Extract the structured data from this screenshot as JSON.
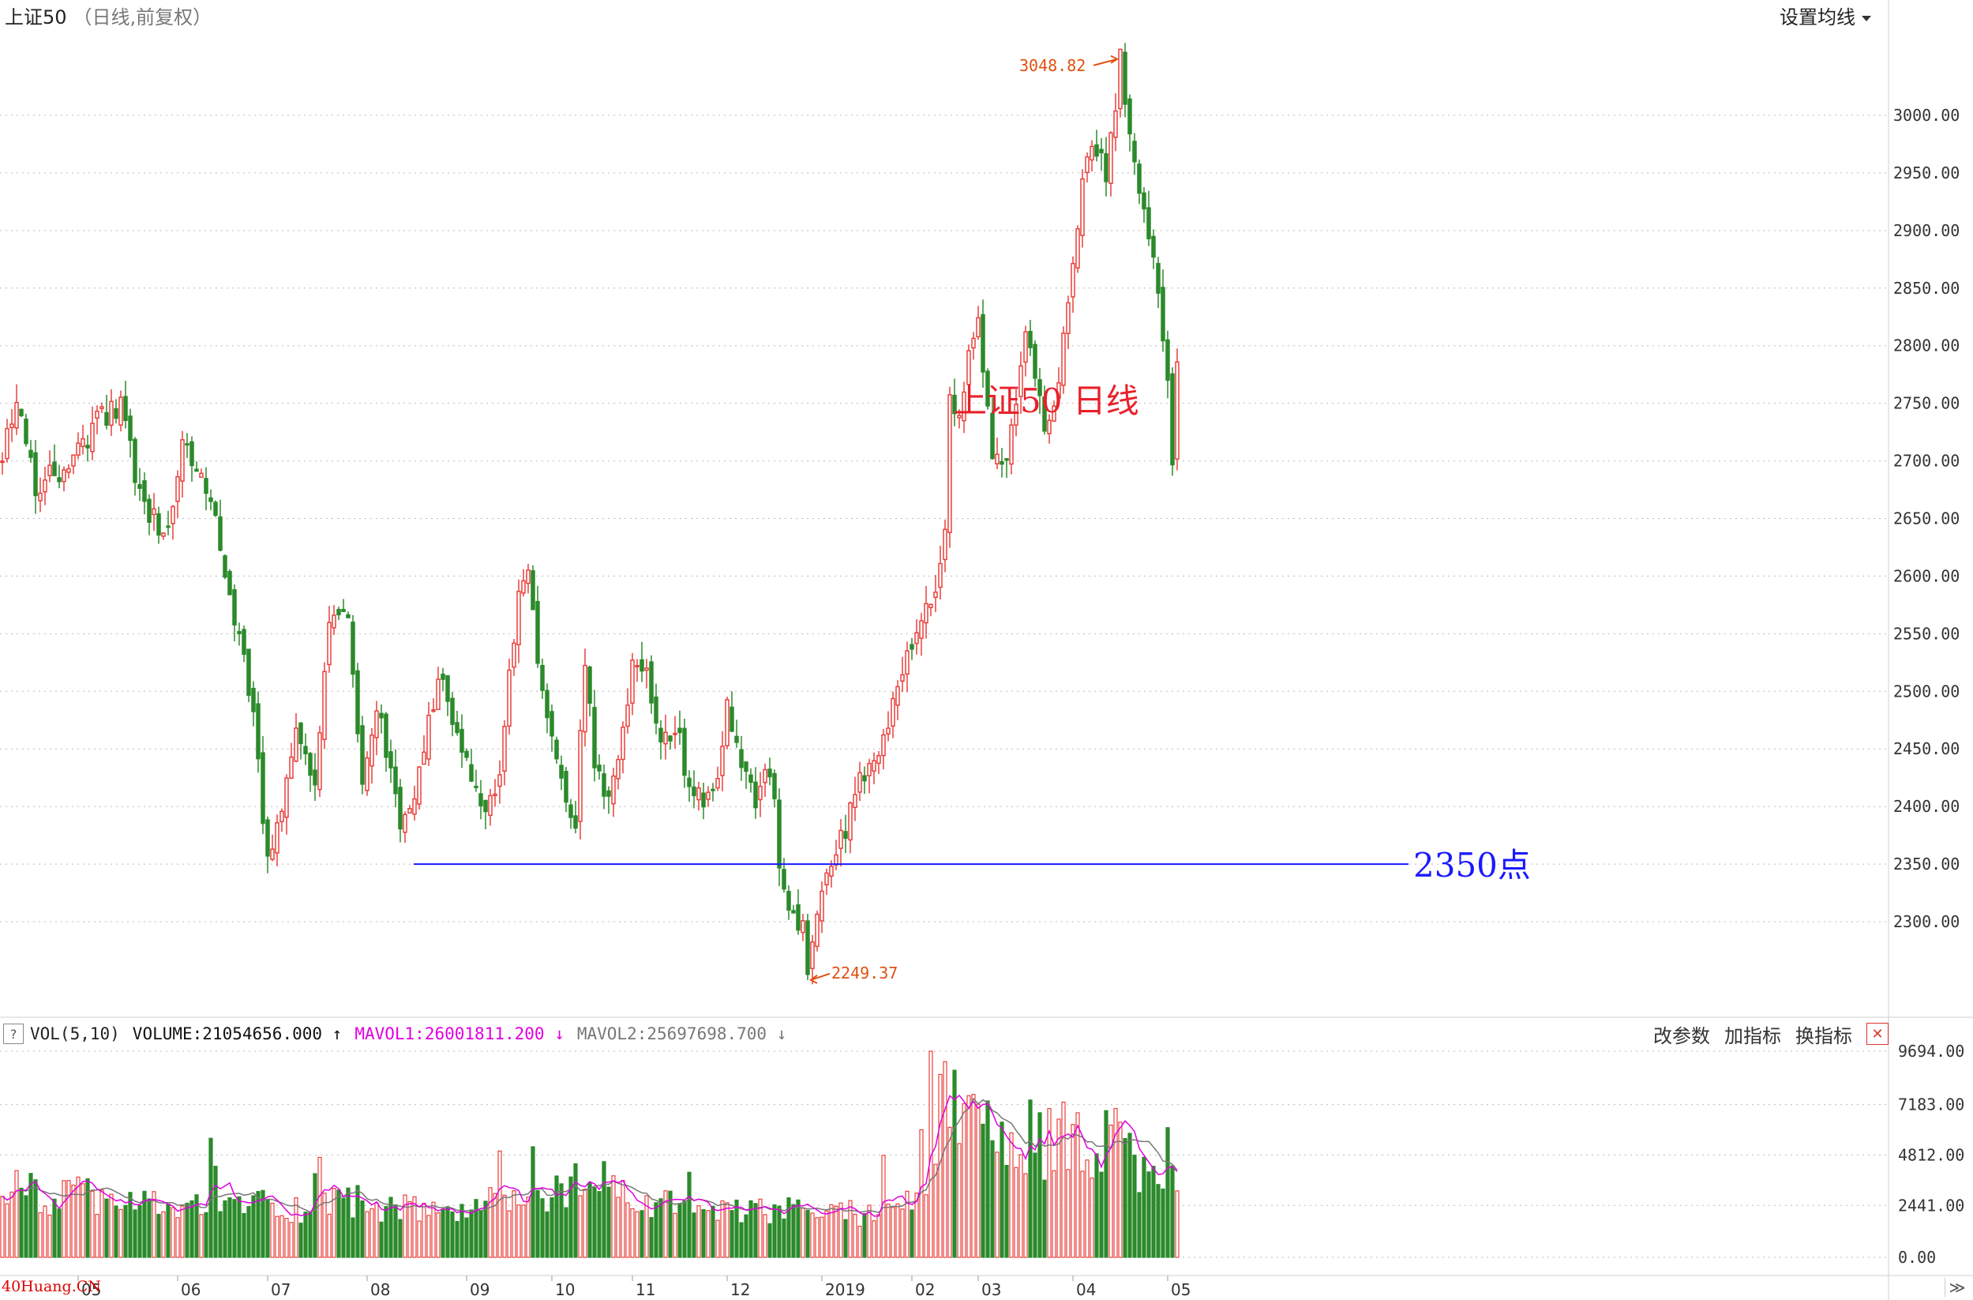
{
  "header": {
    "title": "上证50",
    "subtitle": "（日线,前复权）",
    "ma_button_label": "设置均线"
  },
  "annotations": {
    "chart_label": "上证50  日线",
    "support_label": "2350点",
    "high_label": "3048.82",
    "low_label": "2249.37",
    "watermark": "40Huang.CN"
  },
  "volume_header": {
    "help": "?",
    "indicator": "VOL(5,10)",
    "volume": "VOLUME:21054656.000",
    "mavol1": "MAVOL1:26001811.200",
    "mavol2": "MAVOL2:25697698.700",
    "change_params": "改参数",
    "add_indicator": "加指标",
    "switch_indicator": "换指标",
    "close": "✕"
  },
  "nav_label": "≫",
  "colors": {
    "up": "#e8403c",
    "down": "#2b8a2b",
    "support": "#1a1aff",
    "label_red": "#e8202a",
    "annot_orange": "#e05010",
    "mavol1": "#e000e0",
    "mavol2": "#777777"
  },
  "chart_data": [
    {
      "type": "candlestick",
      "ylim": [
        2249,
        3049
      ],
      "price_ticks": [
        "3000.00",
        "2950.00",
        "2900.00",
        "2850.00",
        "2800.00",
        "2750.00",
        "2700.00",
        "2650.00",
        "2600.00",
        "2550.00",
        "2500.00",
        "2450.00",
        "2400.00",
        "2350.00",
        "2300.00"
      ],
      "x_labels": [
        {
          "label": "05",
          "index": 16
        },
        {
          "label": "06",
          "index": 37
        },
        {
          "label": "07",
          "index": 56
        },
        {
          "label": "08",
          "index": 77
        },
        {
          "label": "09",
          "index": 98
        },
        {
          "label": "10",
          "index": 116
        },
        {
          "label": "11",
          "index": 133
        },
        {
          "label": "12",
          "index": 153
        },
        {
          "label": "2019",
          "index": 173
        },
        {
          "label": "02",
          "index": 192
        },
        {
          "label": "03",
          "index": 206
        },
        {
          "label": "04",
          "index": 226
        },
        {
          "label": "05",
          "index": 246
        }
      ],
      "support_level": 2350,
      "anchors": [
        [
          0,
          2705
        ],
        [
          3,
          2760
        ],
        [
          7,
          2680
        ],
        [
          11,
          2690
        ],
        [
          15,
          2700
        ],
        [
          20,
          2735
        ],
        [
          25,
          2748
        ],
        [
          29,
          2670
        ],
        [
          33,
          2640
        ],
        [
          36,
          2655
        ],
        [
          38,
          2715
        ],
        [
          40,
          2695
        ],
        [
          44,
          2670
        ],
        [
          47,
          2610
        ],
        [
          50,
          2545
        ],
        [
          53,
          2475
        ],
        [
          55,
          2395
        ],
        [
          56,
          2355
        ],
        [
          59,
          2395
        ],
        [
          62,
          2465
        ],
        [
          66,
          2410
        ],
        [
          68,
          2525
        ],
        [
          70,
          2575
        ],
        [
          73,
          2555
        ],
        [
          76,
          2425
        ],
        [
          79,
          2490
        ],
        [
          82,
          2430
        ],
        [
          84,
          2380
        ],
        [
          86,
          2390
        ],
        [
          89,
          2450
        ],
        [
          92,
          2515
        ],
        [
          95,
          2470
        ],
        [
          99,
          2430
        ],
        [
          102,
          2395
        ],
        [
          105,
          2435
        ],
        [
          107,
          2520
        ],
        [
          109,
          2580
        ],
        [
          111,
          2600
        ],
        [
          114,
          2490
        ],
        [
          117,
          2445
        ],
        [
          119,
          2395
        ],
        [
          121,
          2380
        ],
        [
          123,
          2530
        ],
        [
          125,
          2430
        ],
        [
          128,
          2405
        ],
        [
          131,
          2470
        ],
        [
          133,
          2520
        ],
        [
          136,
          2510
        ],
        [
          139,
          2460
        ],
        [
          142,
          2470
        ],
        [
          145,
          2420
        ],
        [
          148,
          2400
        ],
        [
          151,
          2420
        ],
        [
          153,
          2490
        ],
        [
          156,
          2440
        ],
        [
          159,
          2410
        ],
        [
          161,
          2440
        ],
        [
          163,
          2415
        ],
        [
          164,
          2340
        ],
        [
          166,
          2305
        ],
        [
          169,
          2290
        ],
        [
          170,
          2252
        ],
        [
          172,
          2310
        ],
        [
          175,
          2345
        ],
        [
          178,
          2380
        ],
        [
          181,
          2420
        ],
        [
          184,
          2440
        ],
        [
          187,
          2475
        ],
        [
          190,
          2510
        ],
        [
          193,
          2555
        ],
        [
          196,
          2585
        ],
        [
          198,
          2600
        ],
        [
          199,
          2650
        ],
        [
          200,
          2760
        ],
        [
          202,
          2730
        ],
        [
          204,
          2790
        ],
        [
          206,
          2820
        ],
        [
          207,
          2780
        ],
        [
          209,
          2710
        ],
        [
          212,
          2700
        ],
        [
          214,
          2760
        ],
        [
          216,
          2820
        ],
        [
          218,
          2780
        ],
        [
          220,
          2720
        ],
        [
          222,
          2740
        ],
        [
          224,
          2800
        ],
        [
          226,
          2870
        ],
        [
          228,
          2940
        ],
        [
          230,
          2970
        ],
        [
          233,
          2950
        ],
        [
          235,
          3000
        ],
        [
          236,
          3048
        ],
        [
          238,
          2980
        ],
        [
          240,
          2940
        ],
        [
          242,
          2900
        ],
        [
          244,
          2840
        ],
        [
          246,
          2760
        ],
        [
          247,
          2700
        ],
        [
          248,
          2790
        ]
      ]
    },
    {
      "type": "bar",
      "name": "VOL(5,10)",
      "ylim": [
        0,
        9694
      ],
      "volume_ticks": [
        "9694.00",
        "7183.00",
        "4812.00",
        "2441.00",
        "0.00"
      ],
      "series_names": [
        "VOLUME",
        "MAVOL1",
        "MAVOL2"
      ],
      "volume_anchors": [
        [
          0,
          3400
        ],
        [
          5,
          3300
        ],
        [
          10,
          2900
        ],
        [
          17,
          3050
        ],
        [
          25,
          2700
        ],
        [
          35,
          2500
        ],
        [
          43,
          2350
        ],
        [
          44,
          5600
        ],
        [
          46,
          2500
        ],
        [
          50,
          2750
        ],
        [
          55,
          2700
        ],
        [
          60,
          2500
        ],
        [
          64,
          2300
        ],
        [
          66,
          3300
        ],
        [
          67,
          4700
        ],
        [
          69,
          3000
        ],
        [
          75,
          2750
        ],
        [
          85,
          2350
        ],
        [
          95,
          2300
        ],
        [
          100,
          2400
        ],
        [
          106,
          2850
        ],
        [
          111,
          2900
        ],
        [
          113,
          3400
        ],
        [
          119,
          2900
        ],
        [
          123,
          3450
        ],
        [
          126,
          3500
        ],
        [
          130,
          3200
        ],
        [
          135,
          2700
        ],
        [
          145,
          2550
        ],
        [
          150,
          2100
        ],
        [
          160,
          2250
        ],
        [
          165,
          2300
        ],
        [
          170,
          2200
        ],
        [
          175,
          2300
        ],
        [
          180,
          2150
        ],
        [
          185,
          2350
        ],
        [
          190,
          2700
        ],
        [
          195,
          3300
        ],
        [
          199,
          5200
        ],
        [
          202,
          6200
        ],
        [
          205,
          6600
        ],
        [
          208,
          6000
        ],
        [
          210,
          5200
        ],
        [
          215,
          4800
        ],
        [
          220,
          4300
        ],
        [
          225,
          4700
        ],
        [
          228,
          5900
        ],
        [
          231,
          5200
        ],
        [
          236,
          5100
        ],
        [
          240,
          4400
        ],
        [
          244,
          3900
        ],
        [
          248,
          3700
        ]
      ],
      "volume_spikes": [
        [
          44,
          5600
        ],
        [
          67,
          4700
        ],
        [
          105,
          5000
        ],
        [
          112,
          5200
        ],
        [
          121,
          4400
        ],
        [
          127,
          4500
        ],
        [
          145,
          4000
        ],
        [
          186,
          4800
        ],
        [
          194,
          6000
        ],
        [
          196,
          9694
        ],
        [
          198,
          8600
        ],
        [
          199,
          9200
        ],
        [
          201,
          8800
        ],
        [
          204,
          7600
        ],
        [
          206,
          7200
        ],
        [
          217,
          7400
        ],
        [
          219,
          6800
        ],
        [
          221,
          7000
        ],
        [
          223,
          6500
        ],
        [
          224,
          7300
        ],
        [
          227,
          6800
        ],
        [
          233,
          6900
        ],
        [
          235,
          7000
        ],
        [
          246,
          6100
        ]
      ]
    }
  ]
}
